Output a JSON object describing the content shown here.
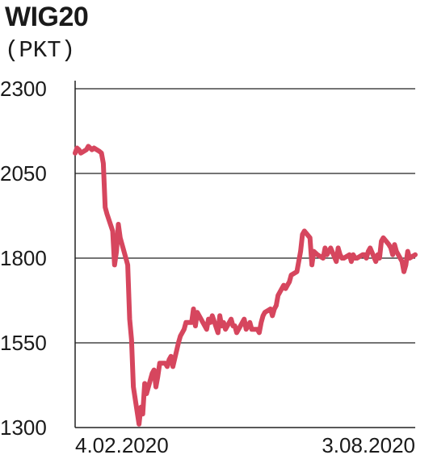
{
  "chart_data": {
    "type": "line",
    "title": "WIG20",
    "subtitle": "(PKT)",
    "xlabel": "",
    "ylabel": "",
    "x_tick_labels": [
      "4.02.2020",
      "3.08.2020"
    ],
    "x_range": [
      "2020-02-04",
      "2020-08-03"
    ],
    "ylim": [
      1300,
      2300
    ],
    "y_ticks": [
      1300,
      1550,
      1800,
      2050,
      2300
    ],
    "y_tick_labels": [
      "1300",
      "1550",
      "1800",
      "2050",
      "2300"
    ],
    "grid": "horizontal",
    "legend": "none",
    "series": [
      {
        "color": "#d6465e",
        "x": [
          "2020-02-04",
          "2020-02-05",
          "2020-02-06",
          "2020-02-07",
          "2020-02-10",
          "2020-02-11",
          "2020-02-12",
          "2020-02-13",
          "2020-02-14",
          "2020-02-17",
          "2020-02-18",
          "2020-02-19",
          "2020-02-20",
          "2020-02-21",
          "2020-02-24",
          "2020-02-25",
          "2020-02-26",
          "2020-02-27",
          "2020-02-28",
          "2020-03-02",
          "2020-03-03",
          "2020-03-04",
          "2020-03-05",
          "2020-03-06",
          "2020-03-09",
          "2020-03-10",
          "2020-03-11",
          "2020-03-12",
          "2020-03-13",
          "2020-03-16",
          "2020-03-17",
          "2020-03-18",
          "2020-03-19",
          "2020-03-20",
          "2020-03-23",
          "2020-03-24",
          "2020-03-25",
          "2020-03-26",
          "2020-03-27",
          "2020-03-30",
          "2020-03-31",
          "2020-04-01",
          "2020-04-02",
          "2020-04-03",
          "2020-04-06",
          "2020-04-07",
          "2020-04-08",
          "2020-04-09",
          "2020-04-14",
          "2020-04-15",
          "2020-04-16",
          "2020-04-17",
          "2020-04-20",
          "2020-04-21",
          "2020-04-22",
          "2020-04-23",
          "2020-04-24",
          "2020-04-27",
          "2020-04-28",
          "2020-04-29",
          "2020-04-30",
          "2020-05-04",
          "2020-05-05",
          "2020-05-06",
          "2020-05-07",
          "2020-05-08",
          "2020-05-11",
          "2020-05-12",
          "2020-05-13",
          "2020-05-14",
          "2020-05-15",
          "2020-05-18",
          "2020-05-19",
          "2020-05-20",
          "2020-05-21",
          "2020-05-22",
          "2020-05-25",
          "2020-05-26",
          "2020-05-27",
          "2020-05-28",
          "2020-05-29",
          "2020-06-01",
          "2020-06-02",
          "2020-06-03",
          "2020-06-04",
          "2020-06-05",
          "2020-06-08",
          "2020-06-09",
          "2020-06-10",
          "2020-06-12",
          "2020-06-15",
          "2020-06-16",
          "2020-06-17",
          "2020-06-18",
          "2020-06-19",
          "2020-06-22",
          "2020-06-23",
          "2020-06-24",
          "2020-06-25",
          "2020-06-26",
          "2020-06-29",
          "2020-06-30",
          "2020-07-01",
          "2020-07-02",
          "2020-07-03",
          "2020-07-06",
          "2020-07-07",
          "2020-07-08",
          "2020-07-09",
          "2020-07-10",
          "2020-07-13",
          "2020-07-14",
          "2020-07-15",
          "2020-07-16",
          "2020-07-17",
          "2020-07-20",
          "2020-07-21",
          "2020-07-22",
          "2020-07-23",
          "2020-07-24",
          "2020-07-27",
          "2020-07-28",
          "2020-07-29",
          "2020-07-30",
          "2020-07-31",
          "2020-08-03"
        ],
        "y": [
          2110,
          2125,
          2120,
          2110,
          2120,
          2130,
          2125,
          2120,
          2125,
          2115,
          2110,
          2080,
          1950,
          1930,
          1880,
          1780,
          1820,
          1900,
          1860,
          1800,
          1780,
          1620,
          1560,
          1420,
          1310,
          1360,
          1340,
          1430,
          1400,
          1460,
          1470,
          1420,
          1450,
          1490,
          1490,
          1480,
          1500,
          1510,
          1480,
          1550,
          1570,
          1580,
          1590,
          1610,
          1610,
          1650,
          1600,
          1640,
          1590,
          1620,
          1610,
          1630,
          1580,
          1630,
          1600,
          1610,
          1590,
          1620,
          1600,
          1600,
          1580,
          1620,
          1590,
          1600,
          1610,
          1590,
          1590,
          1580,
          1610,
          1630,
          1640,
          1650,
          1630,
          1650,
          1660,
          1690,
          1720,
          1710,
          1720,
          1730,
          1750,
          1760,
          1790,
          1820,
          1870,
          1880,
          1860,
          1780,
          1820,
          1810,
          1800,
          1830,
          1810,
          1820,
          1830,
          1790,
          1830,
          1810,
          1800,
          1800,
          1810,
          1790,
          1810,
          1800,
          1800,
          1810,
          1810,
          1800,
          1820,
          1830,
          1790,
          1810,
          1800,
          1850,
          1860,
          1840,
          1830,
          1810,
          1840,
          1820,
          1790,
          1760,
          1780,
          1820,
          1800,
          1810
        ]
      }
    ]
  }
}
